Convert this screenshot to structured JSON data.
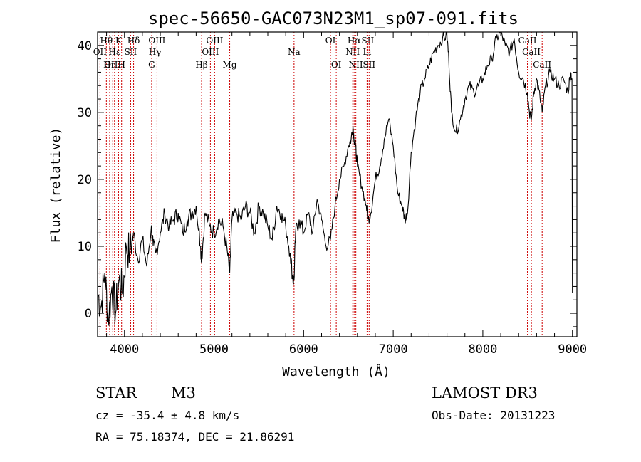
{
  "chart_data": {
    "type": "line",
    "title": "spec-56650-GAC073N23M1_sp07-091.fits",
    "xlabel": "Wavelength (Å)",
    "ylabel": "Flux (relative)",
    "xlim": [
      3700,
      9050
    ],
    "ylim": [
      -3.5,
      42
    ],
    "xticks": [
      4000,
      5000,
      6000,
      7000,
      8000,
      9000
    ],
    "yticks": [
      0,
      10,
      20,
      30,
      40
    ],
    "grid": false,
    "line_color": "#000000",
    "marker_color": "#cc0000",
    "series": [
      {
        "name": "spectrum",
        "x": [
          3700,
          3740,
          3780,
          3820,
          3860,
          3900,
          3940,
          3980,
          4020,
          4060,
          4100,
          4150,
          4200,
          4250,
          4300,
          4320,
          4350,
          4400,
          4450,
          4500,
          4550,
          4600,
          4650,
          4700,
          4750,
          4800,
          4850,
          4861,
          4900,
          4950,
          5000,
          5050,
          5100,
          5150,
          5175,
          5200,
          5250,
          5300,
          5350,
          5400,
          5450,
          5500,
          5550,
          5600,
          5650,
          5700,
          5750,
          5800,
          5850,
          5880,
          5893,
          5910,
          5950,
          6000,
          6050,
          6100,
          6150,
          6200,
          6250,
          6300,
          6350,
          6400,
          6450,
          6500,
          6530,
          6550,
          6563,
          6580,
          6600,
          6650,
          6700,
          6720,
          6750,
          6800,
          6850,
          6900,
          6950,
          7000,
          7050,
          7100,
          7130,
          7160,
          7200,
          7250,
          7300,
          7350,
          7400,
          7450,
          7500,
          7550,
          7600,
          7620,
          7650,
          7700,
          7750,
          7800,
          7850,
          7900,
          7950,
          8000,
          8050,
          8100,
          8150,
          8200,
          8250,
          8300,
          8350,
          8400,
          8450,
          8498,
          8520,
          8542,
          8570,
          8600,
          8640,
          8662,
          8700,
          8750,
          8800,
          8850,
          8900,
          8950,
          8980,
          8995,
          9000
        ],
        "values": [
          3,
          1,
          6,
          -1,
          4,
          0,
          5,
          3,
          10,
          9,
          12,
          8,
          11,
          7,
          13,
          10,
          9,
          12,
          15,
          13,
          14,
          15,
          12,
          14,
          15,
          16,
          10,
          8,
          15,
          13,
          12,
          14,
          13,
          9,
          6,
          14,
          15,
          14,
          16,
          15,
          12,
          16,
          15,
          13,
          11,
          16,
          15,
          13,
          9,
          5,
          5,
          12,
          14,
          12,
          15,
          12,
          17,
          14,
          10,
          11,
          16,
          20,
          22,
          25,
          26,
          28,
          26,
          25,
          22,
          19,
          16,
          14,
          15,
          20,
          22,
          26,
          29,
          25,
          18,
          16,
          14,
          15,
          24,
          29,
          33,
          35,
          37,
          39,
          40,
          41,
          41.5,
          38,
          30,
          27,
          29,
          32,
          34,
          33,
          34,
          35,
          37,
          38,
          41,
          42,
          40,
          39,
          41,
          36,
          35,
          33,
          30,
          29,
          33,
          35,
          32,
          30,
          34,
          36,
          35,
          34,
          35,
          33,
          36,
          35,
          3
        ]
      }
    ],
    "line_markers": [
      {
        "label": "Hθ",
        "wavelength": 3798,
        "row": 1
      },
      {
        "label": "OII",
        "wavelength": 3727,
        "row": 2
      },
      {
        "label": "OIII",
        "wavelength": 3869,
        "row": 3
      },
      {
        "label": "K",
        "wavelength": 3934,
        "row": 1
      },
      {
        "label": "H",
        "wavelength": 3968,
        "row": 3
      },
      {
        "label": "Hε",
        "wavelength": 3889,
        "row": 2
      },
      {
        "label": "Hη",
        "wavelength": 3835,
        "row": 3
      },
      {
        "label": "SII",
        "wavelength": 4069,
        "row": 2
      },
      {
        "label": "Hδ",
        "wavelength": 4102,
        "row": 1
      },
      {
        "label": "OIII",
        "wavelength": 4363,
        "row": 1
      },
      {
        "label": "Hγ",
        "wavelength": 4340,
        "row": 2
      },
      {
        "label": "G",
        "wavelength": 4304,
        "row": 3
      },
      {
        "label": "Hβ",
        "wavelength": 4861,
        "row": 3
      },
      {
        "label": "OIII",
        "wavelength": 5007,
        "row": 1
      },
      {
        "label": "OIII",
        "wavelength": 4959,
        "row": 2
      },
      {
        "label": "Mg",
        "wavelength": 5175,
        "row": 3
      },
      {
        "label": "Na",
        "wavelength": 5893,
        "row": 2
      },
      {
        "label": "OI",
        "wavelength": 6300,
        "row": 1
      },
      {
        "label": "OI",
        "wavelength": 6364,
        "row": 3
      },
      {
        "label": "Hα",
        "wavelength": 6563,
        "row": 1
      },
      {
        "label": "SII",
        "wavelength": 6716,
        "row": 1
      },
      {
        "label": "NII",
        "wavelength": 6548,
        "row": 2
      },
      {
        "label": "Li",
        "wavelength": 6708,
        "row": 2
      },
      {
        "label": "NII",
        "wavelength": 6583,
        "row": 3
      },
      {
        "label": "SII",
        "wavelength": 6731,
        "row": 3
      },
      {
        "label": "CaII",
        "wavelength": 8498,
        "row": 1
      },
      {
        "label": "CaII",
        "wavelength": 8542,
        "row": 2
      },
      {
        "label": "CaII",
        "wavelength": 8662,
        "row": 3
      }
    ]
  },
  "info": {
    "object_class": "STAR",
    "subclass": "M3",
    "redshift": "cz = -35.4 ± 4.8 km/s",
    "coords": "RA =  75.18374, DEC =  21.86291",
    "survey": "LAMOST DR3",
    "obs_date": "Obs-Date: 20131223"
  }
}
